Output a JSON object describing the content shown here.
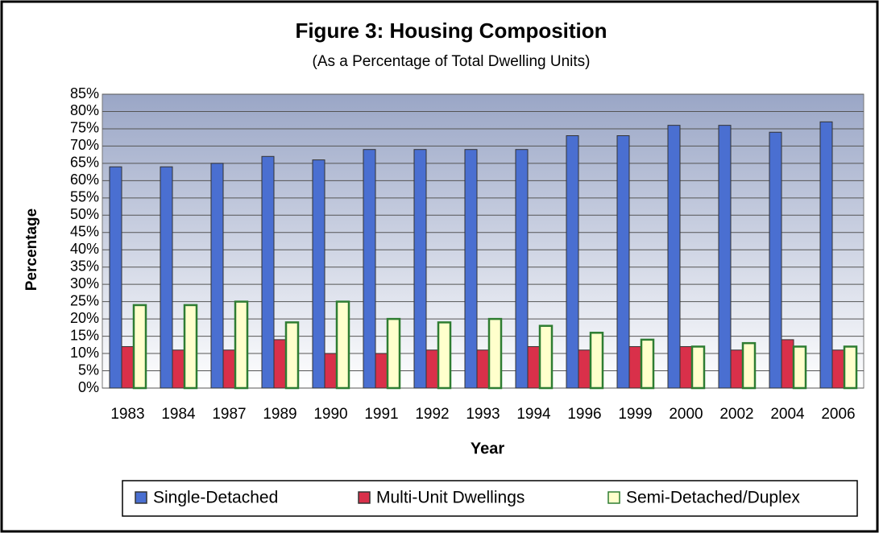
{
  "chart_data": {
    "type": "bar",
    "title": "Figure 3:  Housing Composition",
    "subtitle": "(As a Percentage of Total Dwelling Units)",
    "x_label": "Year",
    "y_label": "Percentage",
    "categories": [
      "1983",
      "1984",
      "1987",
      "1989",
      "1990",
      "1991",
      "1992",
      "1993",
      "1994",
      "1996",
      "1999",
      "2000",
      "2002",
      "2004",
      "2006"
    ],
    "series": [
      {
        "name": "Single-Detached",
        "color": "#4a6fd1",
        "values": [
          64,
          64,
          65,
          67,
          66,
          69,
          69,
          69,
          69,
          73,
          73,
          76,
          76,
          74,
          77
        ]
      },
      {
        "name": "Multi-Unit Dwellings",
        "color": "#d9304a",
        "values": [
          12,
          11,
          11,
          14,
          10,
          10,
          11,
          11,
          12,
          11,
          12,
          12,
          11,
          14,
          11
        ]
      },
      {
        "name": "Semi-Detached/Duplex",
        "color": "#ffffcc",
        "values": [
          24,
          24,
          25,
          19,
          25,
          20,
          19,
          20,
          18,
          16,
          14,
          12,
          13,
          12,
          12
        ]
      }
    ],
    "ylim": [
      0,
      85
    ],
    "yticks": [
      {
        "value": 0,
        "label": "0%"
      },
      {
        "value": 5,
        "label": "5%"
      },
      {
        "value": 10,
        "label": "10%"
      },
      {
        "value": 15,
        "label": "15%"
      },
      {
        "value": 20,
        "label": "20%"
      },
      {
        "value": 25,
        "label": "25%"
      },
      {
        "value": 30,
        "label": "30%"
      },
      {
        "value": 35,
        "label": "35%"
      },
      {
        "value": 40,
        "label": "40%"
      },
      {
        "value": 45,
        "label": "45%"
      },
      {
        "value": 50,
        "label": "50%"
      },
      {
        "value": 55,
        "label": "55%"
      },
      {
        "value": 60,
        "label": "60%"
      },
      {
        "value": 65,
        "label": "65%"
      },
      {
        "value": 70,
        "label": "70%"
      },
      {
        "value": 75,
        "label": "75%"
      },
      {
        "value": 80,
        "label": "80%"
      },
      {
        "value": 85,
        "label": "85%"
      }
    ],
    "grid": true,
    "legend": "bottom"
  }
}
